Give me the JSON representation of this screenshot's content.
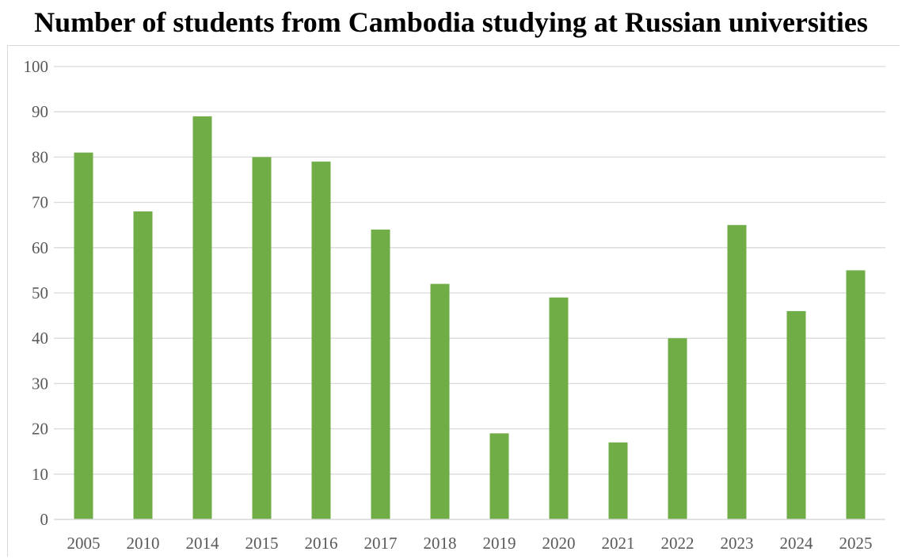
{
  "chart_data": {
    "type": "bar",
    "title": "Number of students from Cambodia studying at Russian universities",
    "xlabel": "",
    "ylabel": "",
    "categories": [
      "2005",
      "2010",
      "2014",
      "2015",
      "2016",
      "2017",
      "2018",
      "2019",
      "2020",
      "2021",
      "2022",
      "2023",
      "2024",
      "2025"
    ],
    "values": [
      81,
      68,
      89,
      80,
      79,
      64,
      52,
      19,
      49,
      17,
      40,
      65,
      46,
      55
    ],
    "ylim": [
      0,
      100
    ],
    "yticks": [
      "0",
      "10",
      "20",
      "30",
      "40",
      "50",
      "60",
      "70",
      "80",
      "90",
      "100"
    ],
    "grid": true,
    "legend": "none",
    "bar_color": "#70ad47",
    "grid_color": "#d9d9d9",
    "axis_color": "#d9d9d9",
    "label_color": "#595959"
  }
}
